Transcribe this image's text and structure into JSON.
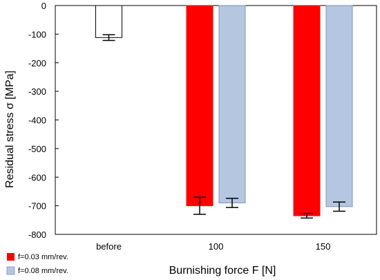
{
  "chart_data": {
    "type": "bar",
    "xlabel": "Burnishing force F [N]",
    "ylabel": "Residual stress σ [MPa]",
    "ylim": [
      -800,
      0
    ],
    "yticks": [
      0,
      -100,
      -200,
      -300,
      -400,
      -500,
      -600,
      -700,
      -800
    ],
    "categories": [
      "before",
      "100",
      "150"
    ],
    "series": [
      {
        "name": "",
        "color": "#ffffff",
        "values": [
          -112,
          null,
          null
        ],
        "errors": [
          10,
          null,
          null
        ]
      },
      {
        "name": "f=0.03 mm/rev.",
        "color": "#ff0000",
        "values": [
          null,
          -700,
          -735
        ],
        "errors": [
          null,
          30,
          8
        ]
      },
      {
        "name": "f=0.08 mm/rev.",
        "color": "#b4c6e0",
        "values": [
          null,
          -690,
          -703
        ],
        "errors": [
          null,
          16,
          16
        ]
      }
    ],
    "grid": false,
    "legend_position": "bottom-left"
  }
}
